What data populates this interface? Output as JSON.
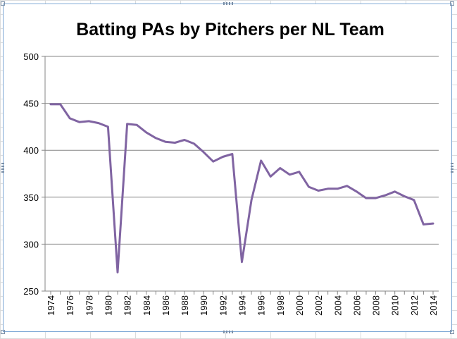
{
  "chart_data": {
    "type": "line",
    "title": "Batting PAs by Pitchers per NL Team",
    "xlabel": "",
    "ylabel": "",
    "ylim": [
      250,
      500
    ],
    "yticks": [
      250,
      300,
      350,
      400,
      450,
      500
    ],
    "xlim": [
      1974,
      2014
    ],
    "xticks": [
      1974,
      1976,
      1978,
      1980,
      1982,
      1984,
      1986,
      1988,
      1990,
      1992,
      1994,
      1996,
      1998,
      2000,
      2002,
      2004,
      2006,
      2008,
      2010,
      2012,
      2014
    ],
    "grid": true,
    "legend": "none",
    "colors": {
      "line": "#8064a2",
      "grid": "#868686",
      "axis": "#868686"
    },
    "series": [
      {
        "x": [
          1974,
          1975,
          1976,
          1977,
          1978,
          1979,
          1980,
          1981,
          1982,
          1983,
          1984,
          1985,
          1986,
          1987,
          1988,
          1989,
          1990,
          1991,
          1992,
          1993,
          1994,
          1995,
          1996,
          1997,
          1998,
          1999,
          2000,
          2001,
          2002,
          2003,
          2004,
          2005,
          2006,
          2007,
          2008,
          2009,
          2010,
          2011,
          2012,
          2013,
          2014
        ],
        "values": [
          449,
          449,
          434,
          430,
          431,
          429,
          425,
          270,
          428,
          427,
          419,
          413,
          409,
          408,
          411,
          407,
          398,
          388,
          393,
          396,
          281,
          347,
          389,
          372,
          381,
          374,
          377,
          361,
          357,
          359,
          359,
          362,
          356,
          349,
          349,
          352,
          356,
          351,
          347,
          321,
          322
        ]
      }
    ]
  }
}
